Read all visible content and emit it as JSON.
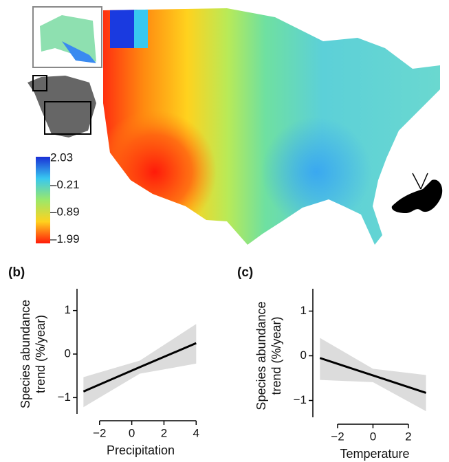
{
  "chart_data": [
    {
      "type": "map",
      "colorbar": {
        "colors": [
          "#1a2fd6",
          "#38c8f0",
          "#9be86a",
          "#ffd21e",
          "#ff1a0a"
        ],
        "ticks": [
          {
            "value": 2.03,
            "label": "2.03"
          },
          {
            "value": -0.21,
            "label": "–0.21"
          },
          {
            "value": -0.89,
            "label": "–0.89"
          },
          {
            "value": -1.99,
            "label": "–1.99"
          }
        ]
      }
    },
    {
      "type": "line",
      "panel": "(b)",
      "ylabel": [
        "Species abundance",
        "trend (%/year)"
      ],
      "xlabel": "Precipitation",
      "x": [
        -3,
        0.5,
        4
      ],
      "series": [
        {
          "color": "#000000",
          "band_color": "#dcdcdc",
          "values": [
            -0.86,
            -0.3,
            0.25
          ],
          "lower": [
            -1.22,
            -0.45,
            -0.22
          ],
          "upper": [
            -0.53,
            -0.15,
            0.69
          ]
        }
      ],
      "xlim": [
        -3.4,
        4.5
      ],
      "ylim": [
        -1.5,
        1.5
      ],
      "xticks": [
        {
          "value": -2,
          "label": "−2"
        },
        0,
        2,
        4
      ],
      "yticks": [
        {
          "value": -1,
          "label": "−1"
        },
        0,
        1
      ]
    },
    {
      "type": "line",
      "panel": "(c)",
      "ylabel": [
        "Species abundance",
        "trend (%/year)"
      ],
      "xlabel": "Temperature",
      "x": [
        -3,
        0,
        3
      ],
      "series": [
        {
          "color": "#000000",
          "band_color": "#dcdcdc",
          "values": [
            -0.05,
            -0.44,
            -0.83
          ],
          "lower": [
            -0.54,
            -0.59,
            -1.24
          ],
          "upper": [
            0.4,
            -0.29,
            -0.43
          ]
        }
      ],
      "xlim": [
        -3.4,
        3.6
      ],
      "ylim": [
        -1.5,
        1.5
      ],
      "xticks": [
        {
          "value": -2,
          "label": "−2"
        },
        0,
        2
      ],
      "yticks": [
        {
          "value": -1,
          "label": "−1"
        },
        0,
        1
      ]
    }
  ]
}
